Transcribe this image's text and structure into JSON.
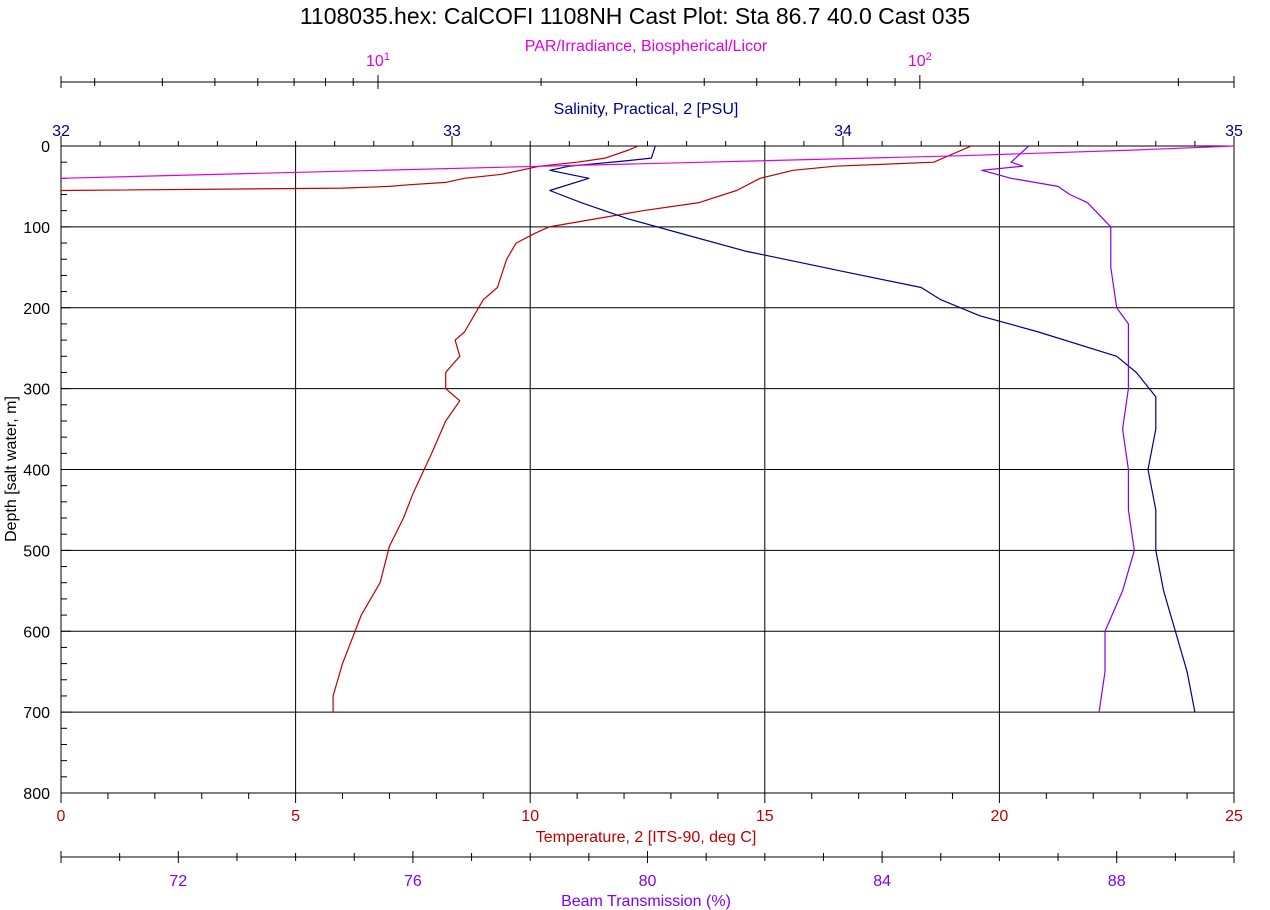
{
  "title": "1108035.hex: CalCOFI 1108NH Cast Plot: Sta 86.7 40.0  Cast 035",
  "colors": {
    "par": "#e000e0",
    "salinity": "#00008b",
    "temperature": "#c00000",
    "beam": "#8000ff",
    "grid": "#000000"
  },
  "chart_data": {
    "type": "line",
    "grid": true,
    "y_axis": {
      "label": "Depth [salt water, m]",
      "range": [
        0,
        800
      ],
      "inverted": true,
      "ticks": [
        "0",
        "100",
        "200",
        "300",
        "400",
        "500",
        "600",
        "700",
        "800"
      ]
    },
    "x_axes": [
      {
        "key": "par",
        "label": "PAR/Irradiance, Biospherical/Licor",
        "position": "top-outer",
        "scale": "log",
        "range": [
          2.6,
          380
        ],
        "ticks": [
          {
            "value": 10,
            "base": "10",
            "exp": "1"
          },
          {
            "value": 100,
            "base": "10",
            "exp": "2"
          }
        ]
      },
      {
        "key": "salinity",
        "label": "Salinity, Practical, 2 [PSU]",
        "position": "top-inner",
        "range": [
          32,
          35
        ],
        "ticks": [
          "32",
          "33",
          "34",
          "35"
        ]
      },
      {
        "key": "temperature",
        "label": "Temperature, 2 [ITS-90, deg C]",
        "position": "bottom-inner",
        "range": [
          0,
          25
        ],
        "ticks": [
          "0",
          "5",
          "10",
          "15",
          "20",
          "25"
        ]
      },
      {
        "key": "beam",
        "label": "Beam Transmission (%)",
        "position": "bottom-outer",
        "range": [
          70,
          90
        ],
        "ticks": [
          "72",
          "76",
          "80",
          "84",
          "88"
        ]
      }
    ],
    "series": [
      {
        "key": "temperature",
        "points": [
          [
            12.3,
            0
          ],
          [
            12.1,
            5
          ],
          [
            11.6,
            15
          ],
          [
            11.0,
            20
          ],
          [
            10.2,
            25
          ],
          [
            9.4,
            35
          ],
          [
            8.6,
            40
          ],
          [
            8.2,
            45
          ],
          [
            7.4,
            48
          ],
          [
            7.0,
            50
          ],
          [
            6.0,
            52
          ],
          [
            0,
            55
          ]
        ]
      },
      {
        "key": "temperature_b",
        "axis": "temperature",
        "points": [
          [
            19.4,
            0
          ],
          [
            18.6,
            20
          ],
          [
            16.5,
            25
          ],
          [
            15.6,
            30
          ],
          [
            14.9,
            40
          ],
          [
            14.4,
            55
          ],
          [
            13.6,
            70
          ],
          [
            12.4,
            80
          ],
          [
            10.4,
            100
          ],
          [
            10.1,
            108
          ],
          [
            9.7,
            120
          ],
          [
            9.5,
            140
          ],
          [
            9.3,
            175
          ],
          [
            9.0,
            190
          ],
          [
            8.8,
            210
          ],
          [
            8.6,
            230
          ],
          [
            8.4,
            240
          ],
          [
            8.5,
            260
          ],
          [
            8.2,
            280
          ],
          [
            8.2,
            300
          ],
          [
            8.5,
            315
          ],
          [
            8.2,
            340
          ],
          [
            7.9,
            380
          ],
          [
            7.5,
            430
          ],
          [
            7.3,
            460
          ],
          [
            7.0,
            495
          ],
          [
            6.8,
            540
          ],
          [
            6.4,
            580
          ],
          [
            6.2,
            610
          ],
          [
            6.0,
            640
          ],
          [
            5.8,
            680
          ],
          [
            5.8,
            700
          ]
        ]
      },
      {
        "key": "salinity",
        "points": [
          [
            33.52,
            0
          ],
          [
            33.51,
            15
          ],
          [
            33.45,
            18
          ],
          [
            33.3,
            25
          ],
          [
            33.25,
            30
          ],
          [
            33.35,
            40
          ],
          [
            33.25,
            55
          ],
          [
            33.33,
            70
          ],
          [
            33.45,
            90
          ],
          [
            33.6,
            110
          ],
          [
            33.75,
            130
          ],
          [
            33.85,
            140
          ],
          [
            34.0,
            155
          ],
          [
            34.2,
            175
          ],
          [
            34.25,
            190
          ],
          [
            34.35,
            210
          ],
          [
            34.5,
            230
          ],
          [
            34.7,
            260
          ],
          [
            34.75,
            280
          ],
          [
            34.8,
            310
          ],
          [
            34.8,
            350
          ],
          [
            34.78,
            400
          ],
          [
            34.8,
            450
          ],
          [
            34.8,
            500
          ],
          [
            34.82,
            550
          ],
          [
            34.85,
            600
          ],
          [
            34.88,
            650
          ],
          [
            34.9,
            700
          ]
        ]
      },
      {
        "key": "beam",
        "points": [
          [
            86.5,
            0
          ],
          [
            86.2,
            20
          ],
          [
            86.4,
            25
          ],
          [
            85.7,
            30
          ],
          [
            86.2,
            40
          ],
          [
            87.0,
            50
          ],
          [
            87.2,
            60
          ],
          [
            87.5,
            70
          ],
          [
            87.7,
            85
          ],
          [
            87.9,
            100
          ],
          [
            87.9,
            150
          ],
          [
            88.0,
            200
          ],
          [
            88.2,
            220
          ],
          [
            88.2,
            300
          ],
          [
            88.1,
            350
          ],
          [
            88.2,
            400
          ],
          [
            88.2,
            450
          ],
          [
            88.3,
            500
          ],
          [
            88.1,
            550
          ],
          [
            87.8,
            600
          ],
          [
            87.8,
            650
          ],
          [
            87.7,
            700
          ]
        ]
      },
      {
        "key": "par",
        "points": [
          [
            380,
            0
          ],
          [
            250,
            5
          ],
          [
            120,
            12
          ],
          [
            40,
            20
          ],
          [
            10,
            30
          ],
          [
            2.6,
            40
          ]
        ]
      }
    ]
  }
}
